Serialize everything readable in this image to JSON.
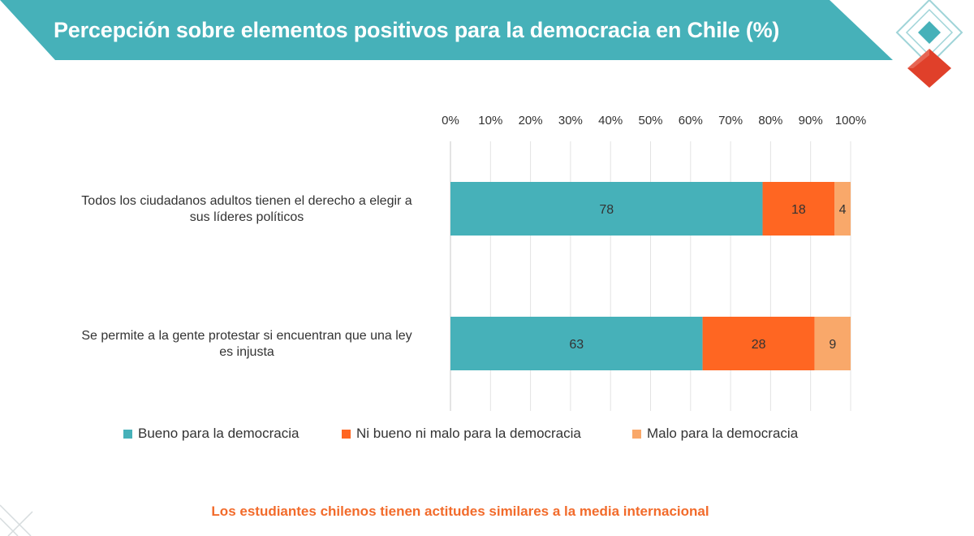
{
  "slide": {
    "title": "Percepción sobre elementos positivos para la democracia en Chile (%)",
    "footnote": "Los estudiantes chilenos tienen actitudes similares a la media internacional"
  },
  "colors": {
    "teal": "#46b1b9",
    "orange": "#ff6622",
    "light_orange": "#f9a86a",
    "logo_red": "#e0402a"
  },
  "chart_data": {
    "type": "bar",
    "orientation": "horizontal",
    "stacked": true,
    "categories": [
      [
        "Todos los ciudadanos adultos tienen el derecho a elegir a",
        "sus líderes políticos"
      ],
      [
        "Se permite a la gente protestar si encuentran que una ley",
        "es injusta"
      ]
    ],
    "series": [
      {
        "name": "Bueno para la democracia",
        "values": [
          78,
          63
        ],
        "color": "#46b1b9"
      },
      {
        "name": "Ni bueno ni malo para la democracia",
        "values": [
          18,
          28
        ],
        "color": "#ff6622"
      },
      {
        "name": "Malo para la democracia",
        "values": [
          4,
          9
        ],
        "color": "#f9a86a"
      }
    ],
    "xlim": [
      0,
      100
    ],
    "x_ticks": [
      "0%",
      "10%",
      "20%",
      "30%",
      "40%",
      "50%",
      "60%",
      "70%",
      "80%",
      "90%",
      "100%"
    ],
    "axis_position": "top",
    "grid": true,
    "legend_position": "bottom"
  }
}
